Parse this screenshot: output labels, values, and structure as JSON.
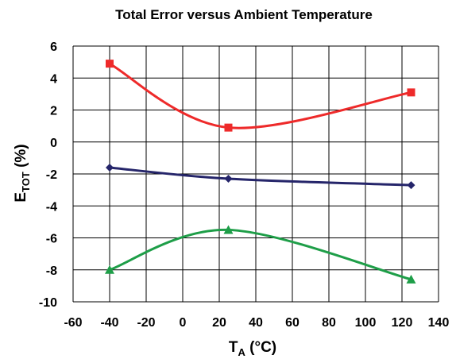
{
  "chart_data": {
    "type": "line",
    "title": "Total Error versus Ambient Temperature",
    "xlabel": {
      "main": "T",
      "sub": "A",
      "unit": " (°C)"
    },
    "ylabel": {
      "main": "E",
      "sub": "TOT",
      "unit": " (%)"
    },
    "xlim": [
      -60,
      140
    ],
    "ylim": [
      -10,
      6
    ],
    "xticks": [
      -60,
      -40,
      -20,
      0,
      20,
      40,
      60,
      80,
      100,
      120,
      140
    ],
    "yticks": [
      6,
      4,
      2,
      0,
      -2,
      -4,
      -6,
      -8,
      -10
    ],
    "grid": true,
    "x": [
      -40,
      25,
      125
    ],
    "series": [
      {
        "values": [
          4.9,
          0.9,
          3.1
        ],
        "color": "#ee2a2a",
        "marker": "square",
        "smooth": true
      },
      {
        "values": [
          -1.6,
          -2.3,
          -2.7
        ],
        "color": "#25256a",
        "marker": "diamond",
        "smooth": true
      },
      {
        "values": [
          -8.0,
          -5.5,
          -8.6
        ],
        "color": "#1e9e48",
        "marker": "triangle",
        "smooth": true
      }
    ]
  }
}
